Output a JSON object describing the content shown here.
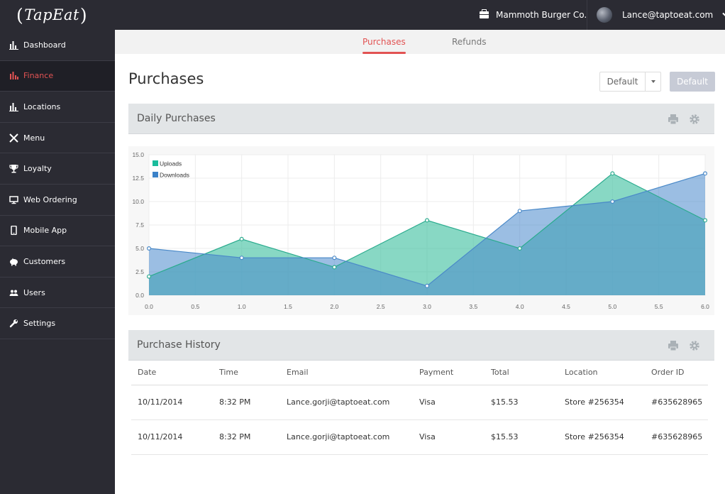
{
  "app": {
    "logo_text": "TapEat",
    "company": "Mammoth Burger Co.",
    "user_email": "Lance@taptoeat.com"
  },
  "sidebar": {
    "items": [
      {
        "label": "Dashboard",
        "icon": "bar-chart-icon",
        "active": false
      },
      {
        "label": "Finance",
        "icon": "finance-chart-icon",
        "active": true
      },
      {
        "label": "Locations",
        "icon": "bar-chart-icon",
        "active": false
      },
      {
        "label": "Menu",
        "icon": "fork-knife-icon",
        "active": false
      },
      {
        "label": "Loyalty",
        "icon": "trophy-icon",
        "active": false
      },
      {
        "label": "Web Ordering",
        "icon": "monitor-icon",
        "active": false
      },
      {
        "label": "Mobile App",
        "icon": "phone-icon",
        "active": false
      },
      {
        "label": "Customers",
        "icon": "piggy-bank-icon",
        "active": false
      },
      {
        "label": "Users",
        "icon": "users-icon",
        "active": false
      },
      {
        "label": "Settings",
        "icon": "wrench-icon",
        "active": false
      }
    ]
  },
  "tabs": [
    {
      "label": "Purchases",
      "active": true
    },
    {
      "label": "Refunds",
      "active": false
    }
  ],
  "page": {
    "title": "Purchases",
    "dropdown_value": "Default",
    "primary_button": "Default"
  },
  "panels": {
    "chart_title": "Daily Purchases",
    "history_title": "Purchase History"
  },
  "colors": {
    "accent": "#e25353",
    "uploads": "#1abc9c",
    "downloads": "#3b82c8",
    "sidebar_bg": "#2b2b33"
  },
  "chart_data": {
    "type": "area",
    "x": [
      0,
      1,
      2,
      3,
      4,
      5,
      6
    ],
    "series": [
      {
        "name": "Uploads",
        "values": [
          2,
          6,
          3,
          8,
          5,
          13,
          8
        ]
      },
      {
        "name": "Downloads",
        "values": [
          5,
          4,
          4,
          1,
          9,
          10,
          13
        ]
      }
    ],
    "xlim": [
      0,
      6
    ],
    "ylim": [
      0,
      15
    ],
    "x_ticks": [
      "0.0",
      "0.5",
      "1.0",
      "1.5",
      "2.0",
      "2.5",
      "3.0",
      "3.5",
      "4.0",
      "4.5",
      "5.0",
      "5.5",
      "6.0"
    ],
    "y_ticks": [
      "0.0",
      "2.5",
      "5.0",
      "7.5",
      "10.0",
      "12.5",
      "15.0"
    ],
    "grid": true,
    "legend": "top-left"
  },
  "history": {
    "columns": [
      "Date",
      "Time",
      "Email",
      "Payment",
      "Total",
      "Location",
      "Order ID"
    ],
    "rows": [
      [
        "10/11/2014",
        "8:32 PM",
        "Lance.gorji@taptoeat.com",
        "Visa",
        "$15.53",
        "Store #256354",
        "#635628965"
      ],
      [
        "10/11/2014",
        "8:32 PM",
        "Lance.gorji@taptoeat.com",
        "Visa",
        "$15.53",
        "Store #256354",
        "#635628965"
      ]
    ]
  }
}
